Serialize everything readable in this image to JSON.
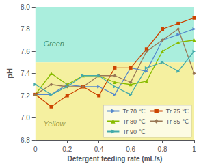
{
  "chart_data": {
    "type": "line",
    "xlabel": "Detergent feeding rate (mL/s)",
    "ylabel": "pH",
    "x": [
      0,
      0.1,
      0.2,
      0.3,
      0.4,
      0.5,
      0.6,
      0.7,
      0.8,
      0.9,
      1.0
    ],
    "series": [
      {
        "name": "Tr 70 ℃",
        "color": "#5588CC",
        "marker": "triangle-right",
        "values": [
          7.21,
          7.21,
          7.3,
          7.28,
          7.28,
          7.21,
          7.45,
          7.42,
          7.7,
          7.75,
          7.8
        ]
      },
      {
        "name": "Tr 75 ℃",
        "color": "#CC4400",
        "marker": "square",
        "values": [
          7.21,
          7.1,
          7.2,
          7.28,
          7.2,
          7.45,
          7.45,
          7.62,
          7.8,
          7.85,
          7.9
        ]
      },
      {
        "name": "Tr 80 ℃",
        "color": "#88BB00",
        "marker": "triangle-up",
        "values": [
          7.21,
          7.4,
          7.3,
          7.38,
          7.38,
          7.32,
          7.3,
          7.33,
          7.6,
          7.68,
          7.7
        ]
      },
      {
        "name": "Tr 85 ℃",
        "color": "#997755",
        "marker": "diamond",
        "values": [
          7.21,
          7.3,
          7.28,
          7.28,
          7.38,
          7.38,
          7.32,
          7.6,
          7.7,
          7.8,
          7.4
        ]
      },
      {
        "name": "Tr 90 ℃",
        "color": "#44AAAA",
        "marker": "triangle-right",
        "values": [
          7.3,
          7.21,
          7.28,
          7.38,
          7.38,
          7.28,
          7.21,
          7.45,
          7.5,
          7.42,
          7.6
        ]
      }
    ],
    "xlim": [
      0,
      1.0
    ],
    "ylim": [
      6.8,
      8.0
    ],
    "xticks": [
      0,
      0.2,
      0.4,
      0.6,
      0.8,
      1
    ],
    "yticks": [
      6.8,
      {
        "value": 7.0,
        "label": "7.0"
      },
      7.2,
      7.4,
      7.6,
      7.8,
      {
        "value": 8.0,
        "label": "8.0"
      }
    ],
    "regions": [
      {
        "from": 7.5,
        "to": 8.0,
        "color": "#AAEEDD"
      },
      {
        "from": 6.8,
        "to": 7.5,
        "color": "#F5F0A0"
      }
    ],
    "annotations": [
      {
        "text": "Green",
        "x": 0.05,
        "y": 7.67,
        "color": "#227755"
      },
      {
        "text": "Yellow",
        "x": 0.05,
        "y": 6.95,
        "color": "#888833"
      }
    ],
    "legend": "lower right",
    "grid": false
  }
}
